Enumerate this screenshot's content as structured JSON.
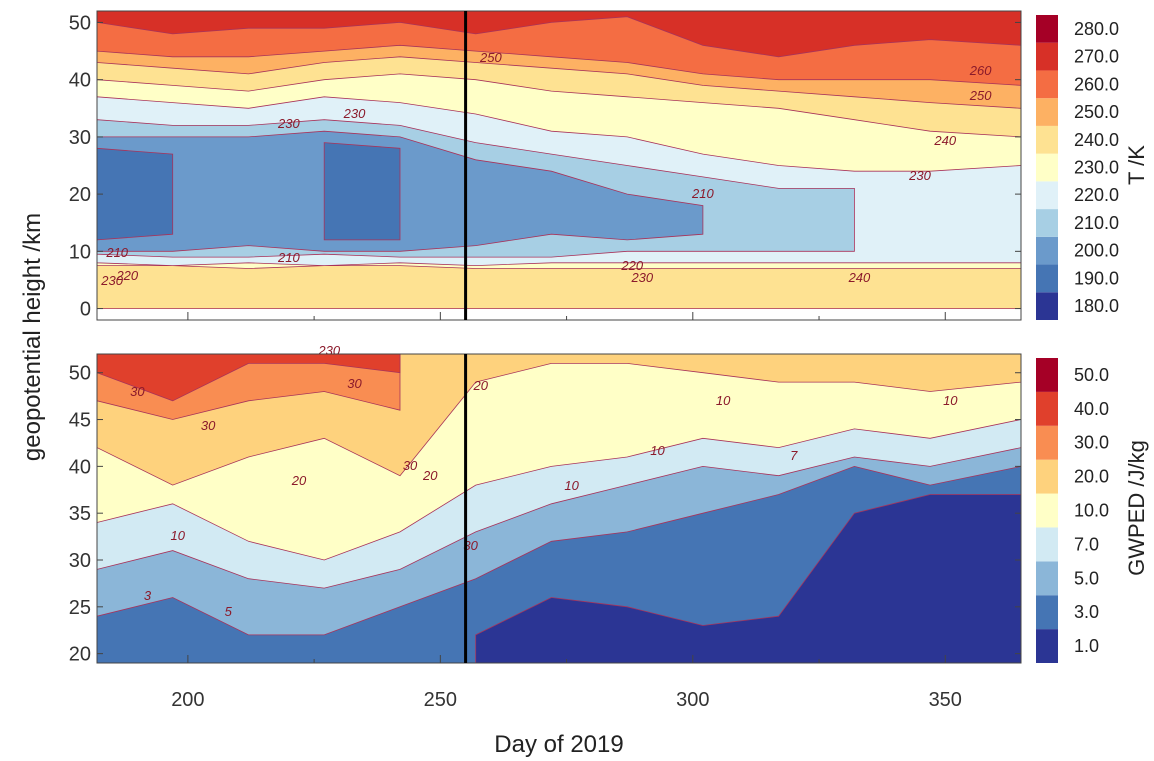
{
  "chart_data": [
    {
      "type": "heatmap",
      "name": "temperature",
      "xlabel": "Day of 2019",
      "ylabel": "geopotential height /km",
      "xlim": [
        182,
        365
      ],
      "ylim": [
        -2,
        52
      ],
      "y_ticks": [
        "0",
        "10",
        "20",
        "30",
        "40",
        "50"
      ],
      "colorbar_label": "T /K",
      "colorbar_levels": [
        "180.0",
        "190.0",
        "200.0",
        "210.0",
        "220.0",
        "230.0",
        "240.0",
        "250.0",
        "260.0",
        "270.0",
        "280.0"
      ],
      "colorbar_colors": [
        "#2b3594",
        "#4575b4",
        "#6b9acb",
        "#a7cfe4",
        "#e0f1f8",
        "#ffffc7",
        "#fee292",
        "#fdb163",
        "#f46d43",
        "#d73027",
        "#a50026"
      ],
      "layers": [
        {
          "level": "≥ 230",
          "color": "#ffffc7",
          "y": [
            [
              0,
              52
            ],
            [
              0,
              52
            ],
            [
              0,
              52
            ],
            [
              0,
              52
            ],
            [
              0,
              52
            ],
            [
              0,
              52
            ],
            [
              0,
              52
            ],
            [
              0,
              52
            ],
            [
              0,
              52
            ],
            [
              0,
              52
            ],
            [
              0,
              52
            ],
            [
              0,
              52
            ],
            [
              0,
              52
            ]
          ]
        },
        {
          "level": "240",
          "color": "#fee292",
          "y": [
            [
              0,
              7.5
            ],
            [
              0,
              7.5
            ],
            [
              0,
              7
            ],
            [
              0,
              7.5
            ],
            [
              0,
              7.5
            ],
            [
              0,
              7
            ],
            [
              0,
              7
            ],
            [
              0,
              7
            ],
            [
              0,
              7
            ],
            [
              0,
              7
            ],
            [
              0,
              7
            ],
            [
              0,
              7
            ],
            [
              0,
              7
            ]
          ]
        },
        {
          "level": "240 upper",
          "color": "#fee292",
          "y": [
            [
              40,
              52
            ],
            [
              39,
              52
            ],
            [
              38,
              52
            ],
            [
              40,
              52
            ],
            [
              41,
              52
            ],
            [
              40,
              52
            ],
            [
              38,
              52
            ],
            [
              37,
              52
            ],
            [
              36,
              52
            ],
            [
              35,
              52
            ],
            [
              33,
              52
            ],
            [
              31,
              52
            ],
            [
              30,
              52
            ]
          ]
        },
        {
          "level": "250",
          "color": "#fdb163",
          "y": [
            [
              43,
              52
            ],
            [
              42,
              52
            ],
            [
              41,
              52
            ],
            [
              43,
              52
            ],
            [
              44,
              52
            ],
            [
              43,
              52
            ],
            [
              42,
              52
            ],
            [
              41,
              52
            ],
            [
              39,
              52
            ],
            [
              38,
              52
            ],
            [
              37,
              52
            ],
            [
              36,
              52
            ],
            [
              35,
              52
            ]
          ]
        },
        {
          "level": "260",
          "color": "#f46d43",
          "y": [
            [
              45,
              52
            ],
            [
              44,
              52
            ],
            [
              44,
              52
            ],
            [
              45,
              52
            ],
            [
              46,
              52
            ],
            [
              45,
              52
            ],
            [
              44,
              52
            ],
            [
              43,
              52
            ],
            [
              41,
              52
            ],
            [
              40,
              52
            ],
            [
              40,
              52
            ],
            [
              40,
              52
            ],
            [
              39,
              52
            ]
          ]
        },
        {
          "level": "270",
          "color": "#d73027",
          "y": [
            [
              50,
              52
            ],
            [
              48,
              52
            ],
            [
              49,
              52
            ],
            [
              49,
              52
            ],
            [
              50,
              52
            ],
            [
              48,
              52
            ],
            [
              50,
              52
            ],
            [
              51,
              52
            ],
            [
              46,
              52
            ],
            [
              44,
              52
            ],
            [
              46,
              52
            ],
            [
              47,
              52
            ],
            [
              46,
              52
            ]
          ]
        },
        {
          "level": "220",
          "color": "#e0f1f8",
          "y": [
            [
              8,
              37
            ],
            [
              7.5,
              36
            ],
            [
              8,
              35
            ],
            [
              7.5,
              37
            ],
            [
              8,
              36
            ],
            [
              7.5,
              34
            ],
            [
              8,
              31
            ],
            [
              8,
              30
            ],
            [
              8,
              27
            ],
            [
              8,
              25
            ],
            [
              8,
              24
            ],
            [
              8,
              24
            ],
            [
              8,
              25
            ]
          ]
        },
        {
          "level": "210",
          "color": "#a7cfe4",
          "y": [
            [
              9.5,
              33
            ],
            [
              9,
              32
            ],
            [
              9,
              32
            ],
            [
              9.5,
              33
            ],
            [
              9,
              32
            ],
            [
              9,
              29
            ],
            [
              9,
              27
            ],
            [
              10,
              25
            ],
            [
              10,
              23
            ],
            [
              10,
              21
            ],
            [
              10,
              21
            ],
            null,
            null
          ]
        },
        {
          "level": "200",
          "color": "#6b9acb",
          "y": [
            [
              10,
              30
            ],
            [
              10,
              30
            ],
            [
              11,
              30
            ],
            [
              10,
              31
            ],
            [
              10,
              30
            ],
            [
              11,
              26
            ],
            [
              13,
              24
            ],
            [
              12,
              20
            ],
            [
              13,
              18
            ],
            null,
            null,
            null,
            null
          ]
        },
        {
          "level": "190",
          "color": "#4575b4",
          "y": [
            [
              12,
              28
            ],
            [
              13,
              27
            ],
            null,
            [
              12,
              29
            ],
            [
              12,
              28
            ],
            null,
            null,
            null,
            null,
            null,
            null,
            null,
            null
          ]
        }
      ],
      "layer_days": [
        182,
        197,
        212,
        227,
        242,
        257,
        272,
        287,
        302,
        317,
        332,
        347,
        365
      ],
      "contour_labels": [
        "230",
        "220",
        "210",
        "210",
        "220",
        "230",
        "210",
        "220",
        "230",
        "240",
        "230",
        "240",
        "250",
        "260",
        "250",
        "230",
        "230"
      ],
      "marker_day": 255
    },
    {
      "type": "heatmap",
      "name": "gwped",
      "xlabel": "Day of 2019",
      "ylabel": "geopotential height /km",
      "xlim": [
        182,
        365
      ],
      "ylim": [
        19,
        52
      ],
      "x_ticks": [
        "200",
        "250",
        "300",
        "350"
      ],
      "y_ticks": [
        "20",
        "25",
        "30",
        "35",
        "40",
        "45",
        "50"
      ],
      "colorbar_label": "GWPED /J/kg",
      "colorbar_levels": [
        "1.0",
        "3.0",
        "5.0",
        "7.0",
        "10.0",
        "20.0",
        "30.0",
        "40.0",
        "50.0"
      ],
      "colorbar_colors": [
        "#2b3594",
        "#4575b4",
        "#8bb6d8",
        "#d2eaf3",
        "#ffffc7",
        "#fed27d",
        "#f98d52",
        "#e0402c",
        "#a50026"
      ],
      "layers": [
        {
          "level": "≥ 10",
          "color": "#ffffc7",
          "y": [
            [
              19,
              52
            ],
            [
              19,
              52
            ],
            [
              19,
              52
            ],
            [
              19,
              52
            ],
            [
              19,
              52
            ],
            [
              19,
              52
            ],
            [
              19,
              52
            ],
            [
              19,
              52
            ],
            [
              19,
              52
            ],
            [
              19,
              52
            ],
            [
              19,
              52
            ],
            [
              19,
              52
            ],
            [
              19,
              52
            ]
          ]
        },
        {
          "level": "20",
          "color": "#fed27d",
          "y": [
            [
              42,
              52
            ],
            [
              38,
              52
            ],
            [
              41,
              52
            ],
            [
              43,
              52
            ],
            [
              39,
              52
            ],
            [
              49,
              52
            ],
            [
              51,
              52
            ],
            [
              51,
              52
            ],
            [
              50,
              52
            ],
            [
              49,
              52
            ],
            [
              49,
              52
            ],
            [
              48,
              52
            ],
            [
              49,
              52
            ]
          ]
        },
        {
          "level": "30",
          "color": "#f98d52",
          "y": [
            [
              47,
              52
            ],
            [
              45,
              52
            ],
            [
              47,
              52
            ],
            [
              48,
              52
            ],
            [
              46,
              52
            ],
            null,
            null,
            null,
            null,
            null,
            null,
            null,
            null
          ]
        },
        {
          "level": "40",
          "color": "#e0402c",
          "y": [
            [
              50,
              52
            ],
            [
              47,
              52
            ],
            [
              51,
              52
            ],
            [
              51,
              52
            ],
            [
              50,
              52
            ],
            null,
            null,
            null,
            null,
            null,
            null,
            null,
            null
          ]
        },
        {
          "level": "7",
          "color": "#d2eaf3",
          "y": [
            [
              19,
              34
            ],
            [
              19,
              36
            ],
            [
              19,
              32
            ],
            [
              19,
              30
            ],
            [
              19,
              33
            ],
            [
              19,
              38
            ],
            [
              19,
              40
            ],
            [
              19,
              41
            ],
            [
              19,
              43
            ],
            [
              19,
              42
            ],
            [
              19,
              44
            ],
            [
              19,
              43
            ],
            [
              19,
              45
            ]
          ]
        },
        {
          "level": "5",
          "color": "#8bb6d8",
          "y": [
            [
              19,
              29
            ],
            [
              19,
              31
            ],
            [
              19,
              28
            ],
            [
              19,
              27
            ],
            [
              19,
              29
            ],
            [
              19,
              33
            ],
            [
              19,
              36
            ],
            [
              19,
              38
            ],
            [
              19,
              40
            ],
            [
              19,
              39
            ],
            [
              19,
              41
            ],
            [
              19,
              40
            ],
            [
              19,
              42
            ]
          ]
        },
        {
          "level": "3",
          "color": "#4575b4",
          "y": [
            [
              19,
              24
            ],
            [
              19,
              26
            ],
            [
              19,
              22
            ],
            [
              19,
              22
            ],
            [
              19,
              25
            ],
            [
              19,
              28
            ],
            [
              19,
              32
            ],
            [
              19,
              33
            ],
            [
              19,
              35
            ],
            [
              19,
              37
            ],
            [
              19,
              40
            ],
            [
              19,
              38
            ],
            [
              19,
              40
            ]
          ]
        },
        {
          "level": "1",
          "color": "#2b3594",
          "y": [
            null,
            null,
            null,
            null,
            null,
            [
              19,
              22
            ],
            [
              19,
              26
            ],
            [
              19,
              25
            ],
            [
              19,
              23
            ],
            [
              19,
              24
            ],
            [
              19,
              35
            ],
            [
              19,
              37
            ],
            [
              19,
              37
            ]
          ]
        }
      ],
      "layer_days": [
        182,
        197,
        212,
        227,
        242,
        257,
        272,
        287,
        302,
        317,
        332,
        347,
        365
      ],
      "contour_labels": [
        "30",
        "30",
        "30",
        "20",
        "30",
        "30",
        "10",
        "20",
        "20",
        "10",
        "10",
        "10",
        "10",
        "7",
        "5",
        "3"
      ],
      "marker_day": 255
    }
  ]
}
